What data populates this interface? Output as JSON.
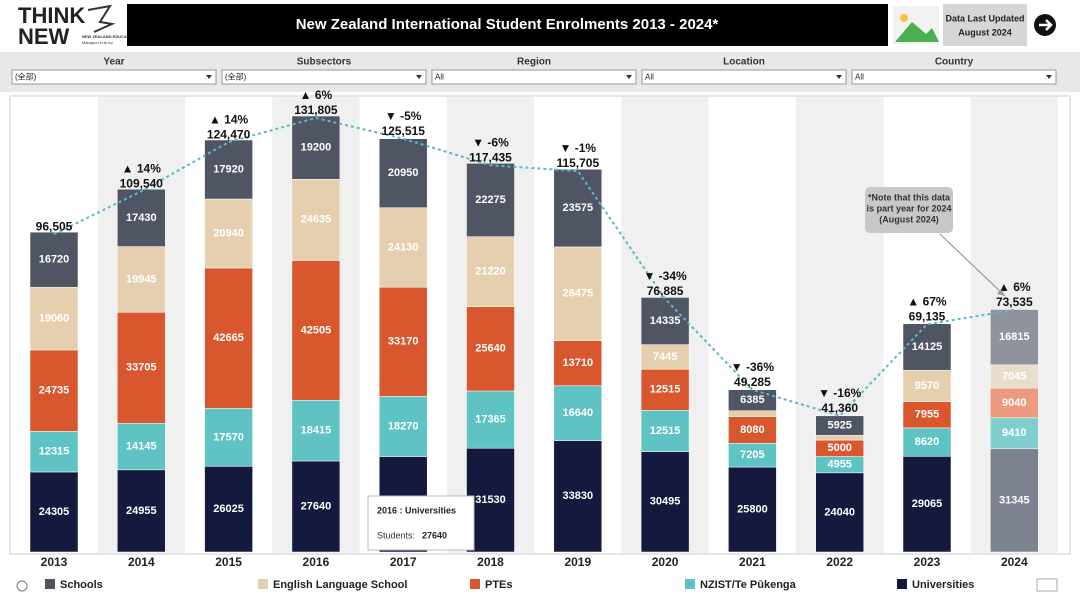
{
  "header": {
    "logo": [
      "THINK",
      "NEW"
    ],
    "logo_caption": "NEW ZEALAND EDUCATION",
    "logo_tagline": "Manapou ki te Ao",
    "update": [
      "Data Last Updated",
      "August 2024"
    ]
  },
  "filters": [
    {
      "label": "Year",
      "value": "(全部)"
    },
    {
      "label": "Subsectors",
      "value": "(全部)"
    },
    {
      "label": "Region",
      "value": "All"
    },
    {
      "label": "Location",
      "value": "All"
    },
    {
      "label": "Country",
      "value": "All"
    }
  ],
  "tooltip": {
    "title": "2016 : Universities",
    "label": "Students:",
    "value": "27640"
  },
  "note": [
    "*Note that this data",
    "is part year for 2024",
    "(August 2024)"
  ],
  "chart_data": {
    "type": "stacked_bar",
    "title": "New Zealand International Student Enrolments 2013 - 2024*",
    "categories": [
      "2013",
      "2014",
      "2015",
      "2016",
      "2017",
      "2018",
      "2019",
      "2020",
      "2021",
      "2022",
      "2023",
      "2024"
    ],
    "ylim": [
      0,
      140000
    ],
    "series": [
      {
        "name": "Schools",
        "color": "#4f5563",
        "colors": [
          "#4f5563",
          "#4f5563",
          "#4f5563",
          "#4f5563",
          "#4f5563",
          "#4f5563",
          "#4f5563",
          "#4f5563",
          "#4f5563",
          "#4f5563",
          "#4f5563",
          "#8e939c"
        ],
        "values": [
          16720,
          17430,
          17920,
          19200,
          20950,
          22275,
          23575,
          14335,
          6385,
          5925,
          14125,
          16815
        ]
      },
      {
        "name": "English Language School",
        "color": "#e6cfae",
        "colors": [
          "#e6cfae",
          "#e6cfae",
          "#e6cfae",
          "#e6cfae",
          "#e6cfae",
          "#e6cfae",
          "#e6cfae",
          "#e6cfae",
          "#e6cfae",
          "#e6cfae",
          "#e6cfae",
          "#e9ddcb"
        ],
        "values": [
          19060,
          19945,
          20940,
          24635,
          24130,
          21220,
          28475,
          7445,
          1815,
          1440,
          9570,
          7045
        ],
        "value_labels": [
          "19060",
          "19945",
          "20940",
          "24635",
          "24130",
          "21220",
          "28475",
          "7445",
          null,
          null,
          "9570",
          "7045"
        ]
      },
      {
        "name": "PTEs",
        "color": "#d9572e",
        "colors": [
          "#d9572e",
          "#d9572e",
          "#d9572e",
          "#d9572e",
          "#d9572e",
          "#d9572e",
          "#d9572e",
          "#d9572e",
          "#d9572e",
          "#d9572e",
          "#d9572e",
          "#eb9a80"
        ],
        "values": [
          24735,
          33705,
          42665,
          42505,
          33170,
          25640,
          13710,
          12515,
          8080,
          5000,
          7955,
          9040
        ]
      },
      {
        "name": "NZIST/Te Pūkenga",
        "color": "#5fc3c3",
        "colors": [
          "#5fc3c3",
          "#5fc3c3",
          "#5fc3c3",
          "#5fc3c3",
          "#5fc3c3",
          "#5fc3c3",
          "#5fc3c3",
          "#5fc3c3",
          "#5fc3c3",
          "#5fc3c3",
          "#5fc3c3",
          "#7fcfcf"
        ],
        "values": [
          12315,
          14145,
          17570,
          18415,
          18270,
          17365,
          16640,
          12515,
          7205,
          4955,
          8620,
          9410
        ]
      },
      {
        "name": "Universities",
        "color": "#15193d",
        "colors": [
          "#15193d",
          "#15193d",
          "#15193d",
          "#15193d",
          "#15193d",
          "#15193d",
          "#15193d",
          "#15193d",
          "#15193d",
          "#15193d",
          "#15193d",
          "#7d8291"
        ],
        "values": [
          24305,
          24955,
          26025,
          27640,
          28995,
          31530,
          33830,
          30495,
          25800,
          24040,
          29065,
          31345
        ]
      }
    ],
    "totals": {
      "color": "#5bb8c9",
      "values": [
        96505,
        109540,
        124470,
        131805,
        125515,
        117435,
        115705,
        76885,
        49285,
        41360,
        69135,
        73535
      ],
      "value_labels": [
        "96,505",
        "109,540",
        "124,470",
        "131,805",
        "125,515",
        "117,435",
        "115,705",
        "76,885",
        "49,285",
        "41,360",
        "69,135",
        "73,535"
      ],
      "change_labels": [
        null,
        "▲ 14%",
        "▲ 14%",
        "▲ 6%",
        "▼ -5%",
        "▼ -6%",
        "▼ -1%",
        "▼ -34%",
        "▼ -36%",
        "▼ -16%",
        "▲ 67%",
        "▲ 6%"
      ]
    }
  }
}
